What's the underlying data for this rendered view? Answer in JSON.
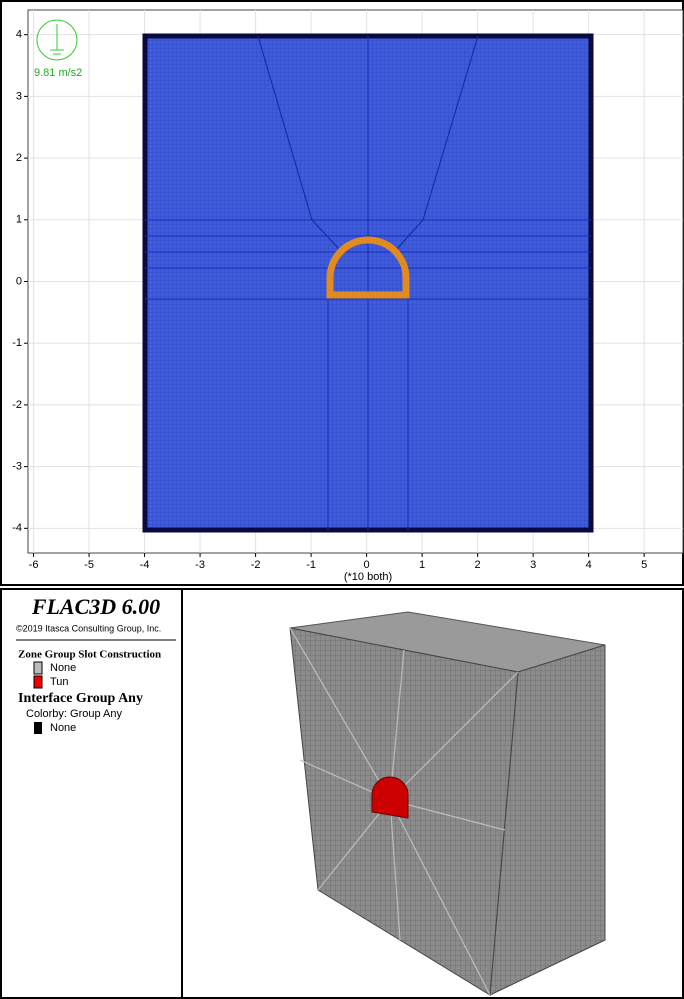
{
  "plot": {
    "xlim": [
      -6.1,
      5.7
    ],
    "ylim": [
      -4.4,
      4.4
    ],
    "xticks": [
      -6,
      -5,
      -4,
      -3,
      -2,
      -1,
      0,
      1,
      2,
      3,
      4,
      5
    ],
    "yticks": [
      4,
      3,
      2,
      1,
      0,
      -1,
      -2,
      -3,
      -4
    ],
    "axis_note": "(*10 both)",
    "gravity_label": "9.81 m/s2"
  },
  "legend": {
    "title": "FLAC3D 6.00",
    "copyright": "©2019 Itasca Consulting Group, Inc.",
    "zone_group": {
      "heading": "Zone Group Slot Construction",
      "items": [
        "None",
        "Tun"
      ]
    },
    "interface_group": {
      "heading": "Interface Group Any",
      "colorby": "Colorby: Group Any",
      "items": [
        "None"
      ]
    }
  }
}
